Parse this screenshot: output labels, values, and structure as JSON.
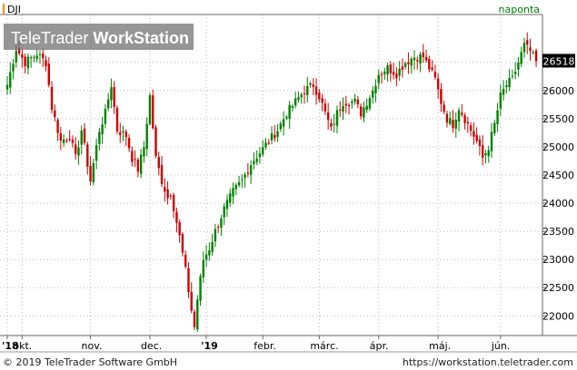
{
  "header": {
    "symbol": "DJI",
    "interval": "naponta"
  },
  "watermark": {
    "brand_light": "TeleTrader",
    "brand_bold": "WorkStation"
  },
  "footer": {
    "copyright": "© 2019 TeleTrader Software GmbH",
    "url": "https://workstation.teletrader.com"
  },
  "colors": {
    "up": "#008000",
    "down": "#cc0000",
    "grid": "#b8b8b8",
    "price_label_bg": "#000000",
    "price_label_text": "#ffffff",
    "interval_text": "#008000",
    "marker": "#ff8c00"
  },
  "chart_data": {
    "type": "candlestick",
    "current_price": "26518",
    "y_ticks": [
      22000,
      22500,
      23000,
      23500,
      24000,
      24500,
      25000,
      25500,
      26000,
      26500
    ],
    "ylim": [
      21650,
      27350
    ],
    "x_ticks": [
      {
        "label": "'18",
        "i": 0
      },
      {
        "label": "okt.",
        "i": 5
      },
      {
        "label": "nov.",
        "i": 28
      },
      {
        "label": "dec.",
        "i": 48
      },
      {
        "label": "'19",
        "i": 67
      },
      {
        "label": "febr.",
        "i": 86
      },
      {
        "label": "márc.",
        "i": 105
      },
      {
        "label": "ápr.",
        "i": 125
      },
      {
        "label": "máj.",
        "i": 145
      },
      {
        "label": "jún.",
        "i": 166
      }
    ],
    "anchors": [
      [
        0,
        26100
      ],
      [
        3,
        26750
      ],
      [
        6,
        26500
      ],
      [
        10,
        26650
      ],
      [
        13,
        26500
      ],
      [
        15,
        25700
      ],
      [
        18,
        25100
      ],
      [
        21,
        25200
      ],
      [
        23,
        24800
      ],
      [
        25,
        25300
      ],
      [
        28,
        24400
      ],
      [
        31,
        25300
      ],
      [
        33,
        25600
      ],
      [
        35,
        26100
      ],
      [
        37,
        25300
      ],
      [
        40,
        25200
      ],
      [
        42,
        24800
      ],
      [
        44,
        24600
      ],
      [
        46,
        25000
      ],
      [
        48,
        25900
      ],
      [
        50,
        24800
      ],
      [
        52,
        24400
      ],
      [
        54,
        24100
      ],
      [
        55,
        24200
      ],
      [
        58,
        23400
      ],
      [
        60,
        22800
      ],
      [
        62,
        22100
      ],
      [
        63,
        21800
      ],
      [
        64,
        22300
      ],
      [
        66,
        23000
      ],
      [
        68,
        23200
      ],
      [
        70,
        23500
      ],
      [
        73,
        23900
      ],
      [
        76,
        24200
      ],
      [
        79,
        24400
      ],
      [
        82,
        24700
      ],
      [
        85,
        24900
      ],
      [
        88,
        25100
      ],
      [
        91,
        25300
      ],
      [
        94,
        25600
      ],
      [
        97,
        25800
      ],
      [
        100,
        26000
      ],
      [
        103,
        26100
      ],
      [
        105,
        25900
      ],
      [
        107,
        25600
      ],
      [
        109,
        25300
      ],
      [
        111,
        25600
      ],
      [
        113,
        25800
      ],
      [
        115,
        25800
      ],
      [
        117,
        25800
      ],
      [
        119,
        25600
      ],
      [
        121,
        25800
      ],
      [
        123,
        26000
      ],
      [
        125,
        26300
      ],
      [
        128,
        26400
      ],
      [
        131,
        26300
      ],
      [
        134,
        26500
      ],
      [
        137,
        26600
      ],
      [
        140,
        26600
      ],
      [
        142,
        26400
      ],
      [
        144,
        26200
      ],
      [
        146,
        25800
      ],
      [
        148,
        25500
      ],
      [
        150,
        25400
      ],
      [
        152,
        25700
      ],
      [
        154,
        25500
      ],
      [
        156,
        25300
      ],
      [
        158,
        25100
      ],
      [
        160,
        24800
      ],
      [
        162,
        25000
      ],
      [
        164,
        25400
      ],
      [
        166,
        25900
      ],
      [
        168,
        26100
      ],
      [
        170,
        26200
      ],
      [
        172,
        26500
      ],
      [
        174,
        26800
      ],
      [
        176,
        26700
      ],
      [
        178,
        26500
      ]
    ]
  }
}
